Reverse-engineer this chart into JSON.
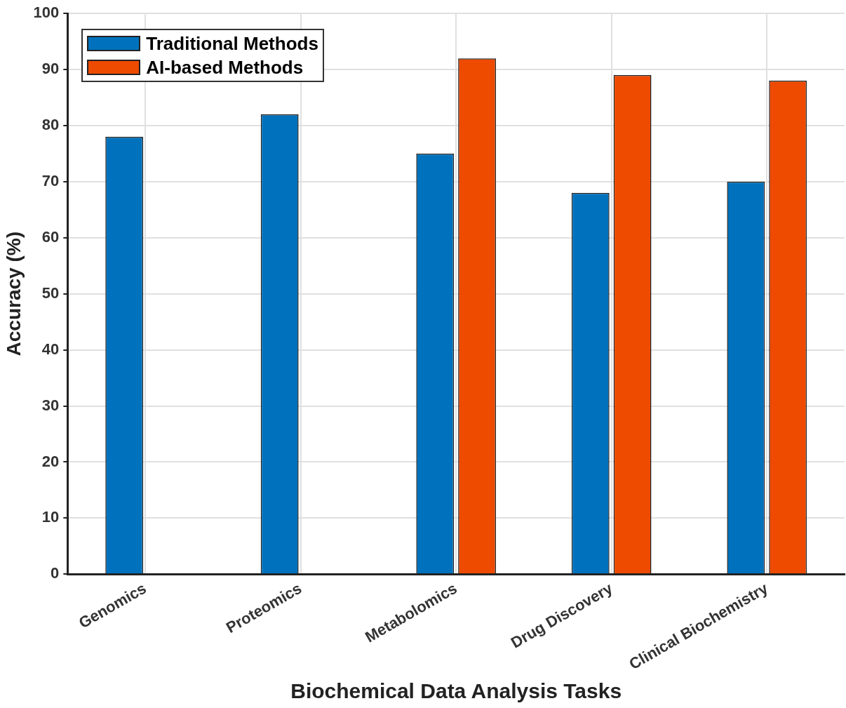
{
  "chart_data": {
    "type": "bar",
    "xlabel": "Biochemical Data Analysis Tasks",
    "ylabel": "Accuracy (%)",
    "categories": [
      "Genomics",
      "Proteomics",
      "Metabolomics",
      "Drug Discovery",
      "Clinical Biochemistry"
    ],
    "series": [
      {
        "name": "Traditional Methods",
        "color": "#0072bd",
        "values": [
          78,
          82,
          75,
          68,
          70
        ]
      },
      {
        "name": "AI-based Methods",
        "color": "#ee4a00",
        "values": [
          null,
          null,
          92,
          89,
          88
        ]
      }
    ],
    "ylim": [
      0,
      100
    ],
    "yticks": [
      0,
      10,
      20,
      30,
      40,
      50,
      60,
      70,
      80,
      90,
      100
    ],
    "grid": true,
    "legend": "top left"
  }
}
